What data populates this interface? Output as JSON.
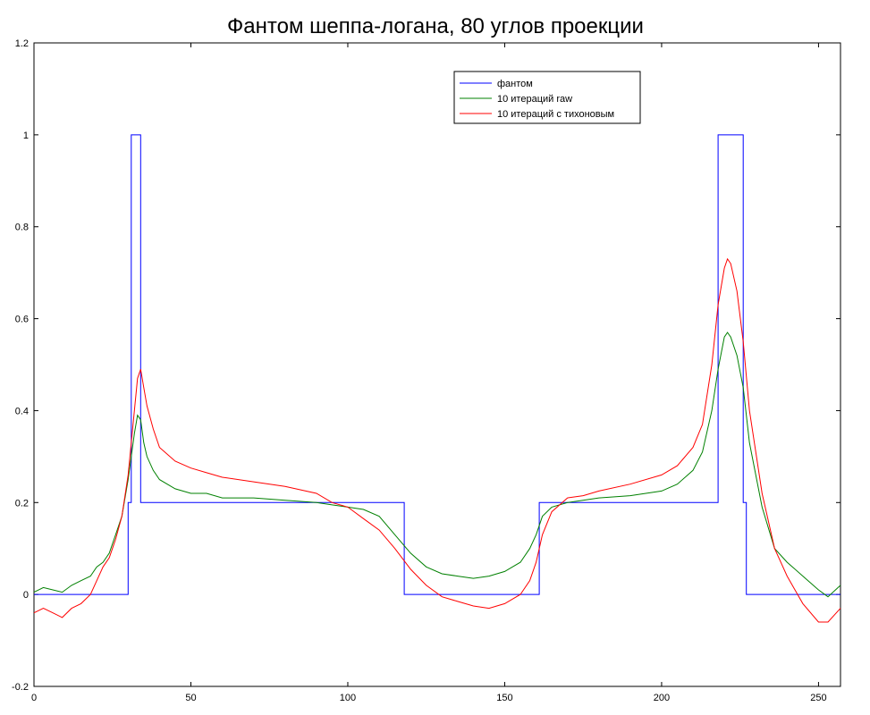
{
  "chart_data": {
    "type": "line",
    "title": "Фантом шеппа-логана, 80 углов проекции",
    "xlabel": "",
    "ylabel": "",
    "xlim": [
      0,
      257
    ],
    "ylim": [
      -0.2,
      1.2
    ],
    "xticks": [
      0,
      50,
      100,
      150,
      200,
      250
    ],
    "yticks": [
      -0.2,
      0,
      0.2,
      0.4,
      0.6,
      0.8,
      1,
      1.2
    ],
    "ytick_labels": [
      "-0.2",
      "0",
      "0.2",
      "0.4",
      "0.6",
      "0.8",
      "1",
      "1.2"
    ],
    "grid": false,
    "legend_position": "top-right",
    "series": [
      {
        "name": "фантом",
        "color": "#0000ff",
        "step": true,
        "x": [
          0,
          30,
          30,
          31,
          31,
          34,
          34,
          35,
          35,
          117,
          117,
          118,
          118,
          161,
          161,
          162,
          162,
          217,
          217,
          218,
          218,
          226,
          226,
          227,
          227,
          257
        ],
        "y": [
          0,
          0,
          0.2,
          0.2,
          1,
          1,
          0.2,
          0.2,
          0.2,
          0.2,
          0.2,
          0.2,
          0,
          0,
          0.2,
          0.2,
          0.2,
          0.2,
          0.2,
          0.2,
          1,
          1,
          0.2,
          0.2,
          0,
          0
        ]
      },
      {
        "name": "10 итераций raw",
        "color": "#008000",
        "x": [
          0,
          3,
          6,
          9,
          12,
          15,
          18,
          20,
          22,
          24,
          26,
          28,
          30,
          32,
          33,
          34,
          35,
          36,
          38,
          40,
          45,
          50,
          55,
          60,
          70,
          80,
          90,
          95,
          100,
          105,
          110,
          115,
          120,
          125,
          130,
          135,
          140,
          145,
          150,
          155,
          158,
          160,
          162,
          165,
          170,
          175,
          180,
          190,
          200,
          205,
          210,
          213,
          216,
          218,
          220,
          221,
          222,
          224,
          226,
          228,
          232,
          236,
          240,
          245,
          250,
          253,
          257
        ],
        "y": [
          0.005,
          0.015,
          0.01,
          0.005,
          0.02,
          0.03,
          0.04,
          0.06,
          0.07,
          0.09,
          0.13,
          0.17,
          0.25,
          0.35,
          0.39,
          0.38,
          0.33,
          0.3,
          0.27,
          0.25,
          0.23,
          0.22,
          0.22,
          0.21,
          0.21,
          0.205,
          0.2,
          0.195,
          0.19,
          0.185,
          0.17,
          0.13,
          0.09,
          0.06,
          0.045,
          0.04,
          0.035,
          0.04,
          0.05,
          0.07,
          0.1,
          0.13,
          0.17,
          0.19,
          0.2,
          0.205,
          0.21,
          0.215,
          0.225,
          0.24,
          0.27,
          0.31,
          0.4,
          0.49,
          0.56,
          0.57,
          0.56,
          0.52,
          0.45,
          0.33,
          0.19,
          0.1,
          0.07,
          0.04,
          0.01,
          -0.005,
          0.02
        ]
      },
      {
        "name": "10 итераций с тихоновым",
        "color": "#ff0000",
        "x": [
          0,
          3,
          6,
          9,
          12,
          15,
          18,
          20,
          22,
          24,
          26,
          28,
          30,
          32,
          33,
          34,
          35,
          36,
          38,
          40,
          45,
          50,
          55,
          60,
          70,
          80,
          90,
          95,
          100,
          105,
          110,
          115,
          120,
          125,
          130,
          135,
          140,
          145,
          150,
          155,
          158,
          160,
          162,
          165,
          170,
          175,
          180,
          190,
          200,
          205,
          210,
          213,
          216,
          218,
          220,
          221,
          222,
          224,
          226,
          228,
          232,
          236,
          240,
          245,
          250,
          253,
          257
        ],
        "y": [
          -0.04,
          -0.03,
          -0.04,
          -0.05,
          -0.03,
          -0.02,
          0.0,
          0.03,
          0.06,
          0.08,
          0.12,
          0.17,
          0.26,
          0.4,
          0.47,
          0.49,
          0.45,
          0.41,
          0.36,
          0.32,
          0.29,
          0.275,
          0.265,
          0.255,
          0.245,
          0.235,
          0.22,
          0.2,
          0.19,
          0.165,
          0.14,
          0.1,
          0.055,
          0.02,
          -0.005,
          -0.015,
          -0.025,
          -0.03,
          -0.02,
          0.0,
          0.03,
          0.07,
          0.13,
          0.18,
          0.21,
          0.215,
          0.225,
          0.24,
          0.26,
          0.28,
          0.32,
          0.37,
          0.5,
          0.63,
          0.71,
          0.73,
          0.72,
          0.66,
          0.55,
          0.4,
          0.22,
          0.1,
          0.04,
          -0.02,
          -0.06,
          -0.06,
          -0.03
        ]
      }
    ]
  }
}
